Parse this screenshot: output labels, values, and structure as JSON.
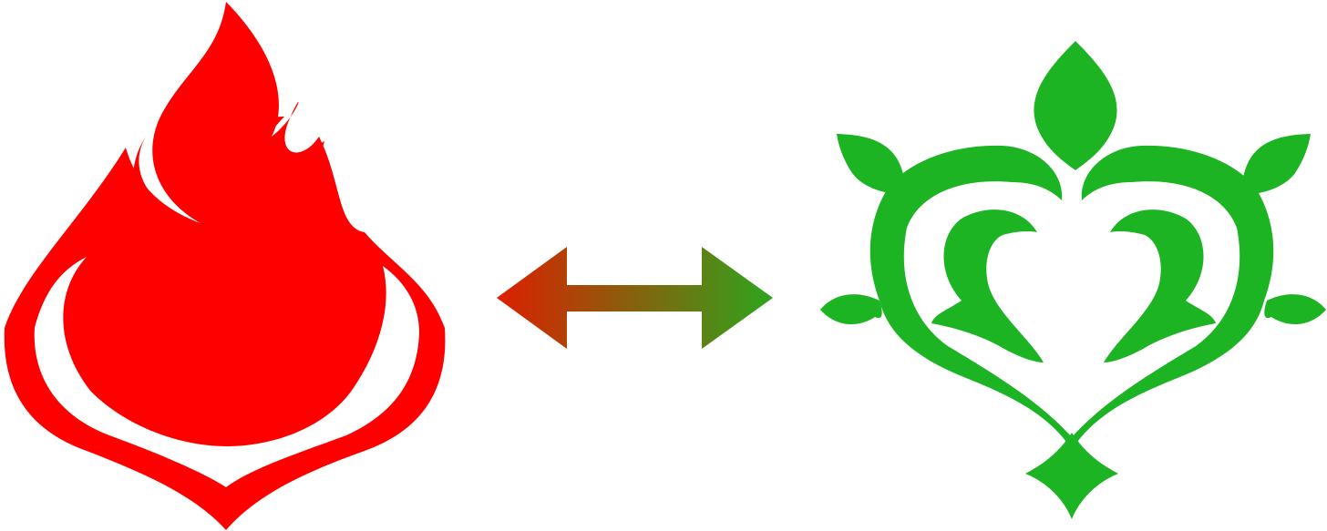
{
  "colors": {
    "background": "#ffffff",
    "pyro": "#ff0000",
    "dendro": "#1db424",
    "arrow_start": "#dd1f00",
    "arrow_end": "#2ea51c"
  },
  "icons": {
    "left": "pyro-flame-emblem-icon",
    "arrow": "double-headed-arrow-icon",
    "right": "dendro-leaf-heart-emblem-icon"
  }
}
